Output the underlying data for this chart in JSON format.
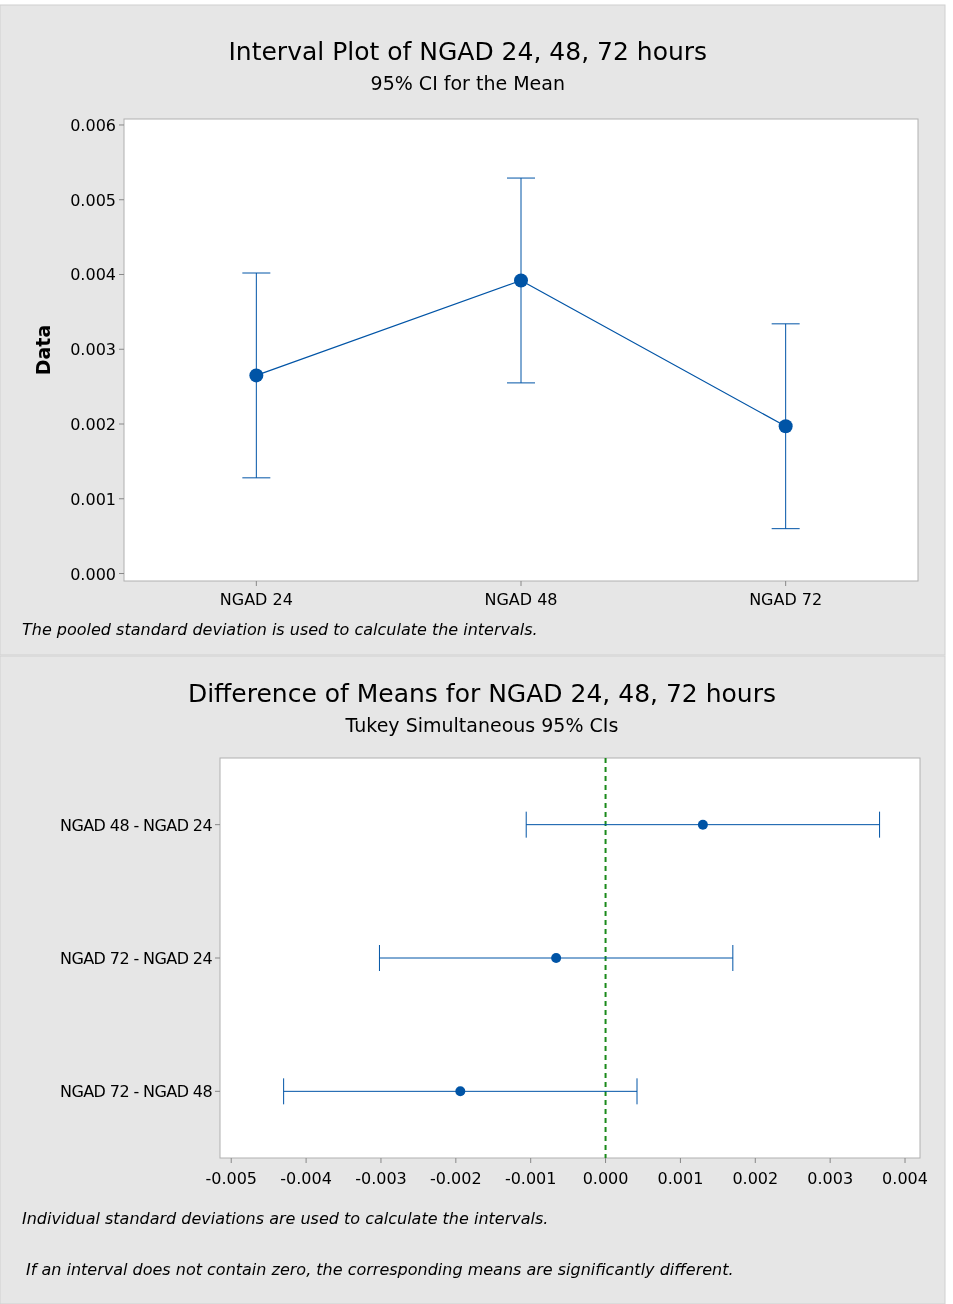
{
  "chart_data": [
    {
      "type": "line",
      "title": "Interval Plot of NGAD 24, 48, 72 hours",
      "subtitle": "95% CI for the Mean",
      "ylabel": "Data",
      "categories": [
        "NGAD 24",
        "NGAD 48",
        "NGAD 72"
      ],
      "color": "#0054a6",
      "values": [
        0.00265,
        0.00392,
        0.00197
      ],
      "errors": [
        0.00137,
        0.00137,
        0.00137
      ],
      "marker": "circle",
      "ylim": [
        -0.0001,
        0.00608
      ],
      "yticks": [
        {
          "value": 0,
          "label": "0.000"
        },
        0.001,
        0.002,
        0.003,
        0.004,
        0.005,
        0.006
      ],
      "annotations": [
        "The pooled standard deviation is used to calculate the intervals."
      ]
    },
    {
      "type": "scatter",
      "orientation": "horizontal",
      "title": "Difference of Means for NGAD 24, 48, 72 hours",
      "subtitle": "Tukey Simultaneous 95% CIs",
      "categories": [
        "NGAD 48 - NGAD 24",
        "NGAD 72 - NGAD 24",
        "NGAD 72 - NGAD 48"
      ],
      "series": [
        {
          "color": "#0054a6",
          "values": [
            0.0013,
            -0.00066,
            -0.00194
          ],
          "errors": [
            0.00236,
            0.00236,
            0.00236
          ]
        }
      ],
      "marker": "circle",
      "xlim": [
        -0.00515,
        0.0042
      ],
      "xticks": [
        -0.005,
        -0.004,
        -0.003,
        -0.002,
        -0.001,
        {
          "value": 0,
          "label": "0.000"
        },
        0.001,
        0.002,
        0.003,
        0.004
      ],
      "ref_lines": [
        {
          "axis": "x",
          "value": 0,
          "color": "#1a8a1a",
          "line_style": "dashed"
        }
      ],
      "annotations": [
        "Individual standard deviations are used to calculate the intervals.",
        "If an interval does not contain zero, the corresponding means are significantly different."
      ]
    }
  ]
}
